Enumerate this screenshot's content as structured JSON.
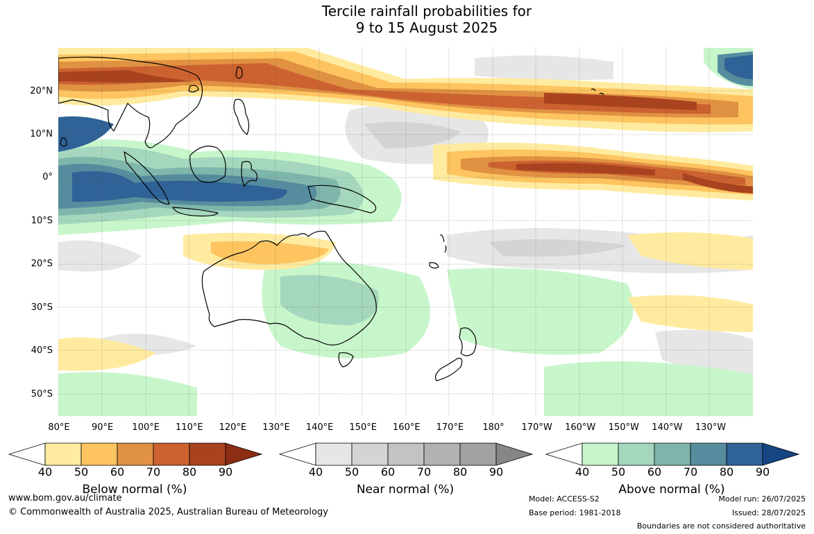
{
  "title_line1": "Tercile rainfall probabilities for",
  "title_line2": "9 to 15 August 2025",
  "lat_labels": [
    "20°N",
    "10°N",
    "0°",
    "10°S",
    "20°S",
    "30°S",
    "40°S",
    "50°S"
  ],
  "lon_labels": [
    "80°E",
    "90°E",
    "100°E",
    "110°E",
    "120°E",
    "130°E",
    "140°E",
    "150°E",
    "160°E",
    "170°E",
    "180°",
    "170°W",
    "160°W",
    "150°W",
    "140°W",
    "130°W"
  ],
  "colorbars": [
    {
      "title": "Below normal (%)",
      "ticks": [
        "40",
        "50",
        "60",
        "70",
        "80",
        "90"
      ],
      "colors": [
        "#ffffff",
        "#ffeba0",
        "#fdc45f",
        "#e09142",
        "#cb6230",
        "#a9431f",
        "#8c2d14"
      ]
    },
    {
      "title": "Near normal (%)",
      "ticks": [
        "40",
        "50",
        "60",
        "70",
        "80",
        "90"
      ],
      "colors": [
        "#ffffff",
        "#e6e6e6",
        "#d4d4d4",
        "#c3c3c3",
        "#b2b2b2",
        "#a2a2a2",
        "#868686"
      ]
    },
    {
      "title": "Above normal (%)",
      "ticks": [
        "40",
        "50",
        "60",
        "70",
        "80",
        "90"
      ],
      "colors": [
        "#ffffff",
        "#c8f6cb",
        "#a4d7bd",
        "#7fb6ab",
        "#568d9e",
        "#2f6296",
        "#154683"
      ]
    }
  ],
  "footer": {
    "website": "www.bom.gov.au/climate",
    "copyright": "© Commonwealth of Australia 2025, Australian Bureau of Meteorology",
    "model": "Model: ACCESS-S2",
    "base_period": "Base period: 1981-2018",
    "model_run": "Model run: 26/07/2025",
    "issued": "Issued: 28/07/2025",
    "disclaimer": "Boundaries are not considered authoritative"
  }
}
